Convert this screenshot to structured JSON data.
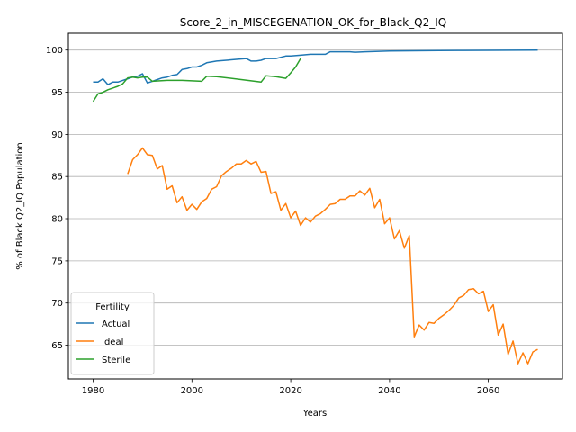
{
  "chart_data": {
    "type": "line",
    "title": "Score_2_in_MISCEGENATION_OK_for_Black_Q2_IQ",
    "xlabel": "Years",
    "ylabel": "% of Black Q2_IQ Population",
    "xlim": [
      1975,
      2075
    ],
    "ylim": [
      61,
      102
    ],
    "xticks": [
      1980,
      2000,
      2020,
      2040,
      2060
    ],
    "yticks": [
      65,
      70,
      75,
      80,
      85,
      90,
      95,
      100
    ],
    "grid": "horizontal",
    "legend": {
      "title": "Fertility",
      "position": "lower-left"
    },
    "series": [
      {
        "name": "Actual",
        "color": "#1f77b4",
        "x": [
          1980,
          1981,
          1982,
          1983,
          1984,
          1985,
          1986,
          1987,
          1988,
          1989,
          1990,
          1991,
          1992,
          1993,
          1994,
          1995,
          1996,
          1997,
          1998,
          1999,
          2000,
          2001,
          2002,
          2003,
          2005,
          2007,
          2009,
          2011,
          2012,
          2013,
          2014,
          2015,
          2017,
          2019,
          2020,
          2022,
          2024,
          2026,
          2027,
          2028,
          2030,
          2032,
          2033,
          2035,
          2040,
          2045,
          2050,
          2055,
          2060,
          2065,
          2070
        ],
        "y": [
          96.2,
          96.2,
          96.6,
          95.9,
          96.2,
          96.2,
          96.4,
          96.6,
          96.8,
          96.9,
          97.2,
          96.1,
          96.3,
          96.5,
          96.7,
          96.8,
          97.0,
          97.1,
          97.7,
          97.8,
          98.0,
          98.0,
          98.2,
          98.5,
          98.7,
          98.8,
          98.9,
          99.0,
          98.7,
          98.7,
          98.8,
          99.0,
          99.0,
          99.3,
          99.3,
          99.4,
          99.5,
          99.5,
          99.5,
          99.8,
          99.8,
          99.8,
          99.75,
          99.8,
          99.9,
          99.92,
          99.95,
          99.96,
          99.97,
          99.98,
          99.99
        ]
      },
      {
        "name": "Ideal",
        "color": "#ff7f0e",
        "x": [
          1987,
          1988,
          1989,
          1990,
          1991,
          1992,
          1993,
          1994,
          1995,
          1996,
          1997,
          1998,
          1999,
          2000,
          2001,
          2002,
          2003,
          2004,
          2005,
          2006,
          2007,
          2008,
          2009,
          2010,
          2011,
          2012,
          2013,
          2014,
          2015,
          2016,
          2017,
          2018,
          2019,
          2020,
          2021,
          2022,
          2023,
          2024,
          2025,
          2026,
          2027,
          2028,
          2029,
          2030,
          2031,
          2032,
          2033,
          2034,
          2035,
          2036,
          2037,
          2038,
          2039,
          2040,
          2041,
          2042,
          2043,
          2044,
          2045,
          2046,
          2047,
          2048,
          2049,
          2050,
          2051,
          2052,
          2053,
          2054,
          2055,
          2056,
          2057,
          2058,
          2059,
          2060,
          2061,
          2062,
          2063,
          2064,
          2065,
          2066,
          2067,
          2068,
          2069,
          2070
        ],
        "y": [
          85.3,
          87.0,
          87.6,
          88.4,
          87.6,
          87.5,
          85.9,
          86.3,
          83.5,
          83.9,
          81.9,
          82.6,
          81.0,
          81.7,
          81.1,
          82.0,
          82.4,
          83.5,
          83.8,
          85.1,
          85.6,
          86.0,
          86.5,
          86.5,
          86.9,
          86.5,
          86.8,
          85.5,
          85.6,
          83.0,
          83.2,
          81.0,
          81.8,
          80.1,
          80.9,
          79.2,
          80.1,
          79.6,
          80.3,
          80.6,
          81.1,
          81.7,
          81.8,
          82.3,
          82.3,
          82.7,
          82.7,
          83.3,
          82.8,
          83.6,
          81.3,
          82.3,
          79.4,
          80.1,
          77.6,
          78.6,
          76.5,
          78.0,
          66.0,
          67.4,
          66.8,
          67.7,
          67.6,
          68.2,
          68.6,
          69.1,
          69.7,
          70.6,
          70.9,
          71.6,
          71.7,
          71.1,
          71.4,
          69.0,
          69.8,
          66.2,
          67.5,
          63.9,
          65.5,
          62.8,
          64.1,
          62.8,
          64.2,
          64.5
        ]
      },
      {
        "name": "Sterile",
        "color": "#2ca02c",
        "x": [
          1980,
          1981,
          1982,
          1983,
          1984,
          1985,
          1986,
          1987,
          1988,
          1989,
          1990,
          1991,
          1992,
          1995,
          1998,
          2002,
          2003,
          2005,
          2010,
          2014,
          2015,
          2017,
          2019,
          2020,
          2021,
          2022
        ],
        "y": [
          93.9,
          94.8,
          95.0,
          95.3,
          95.5,
          95.7,
          96.0,
          96.7,
          96.8,
          96.7,
          96.8,
          96.8,
          96.3,
          96.4,
          96.4,
          96.3,
          96.9,
          96.85,
          96.5,
          96.2,
          96.95,
          96.85,
          96.65,
          97.3,
          98.0,
          99.0
        ]
      }
    ]
  }
}
